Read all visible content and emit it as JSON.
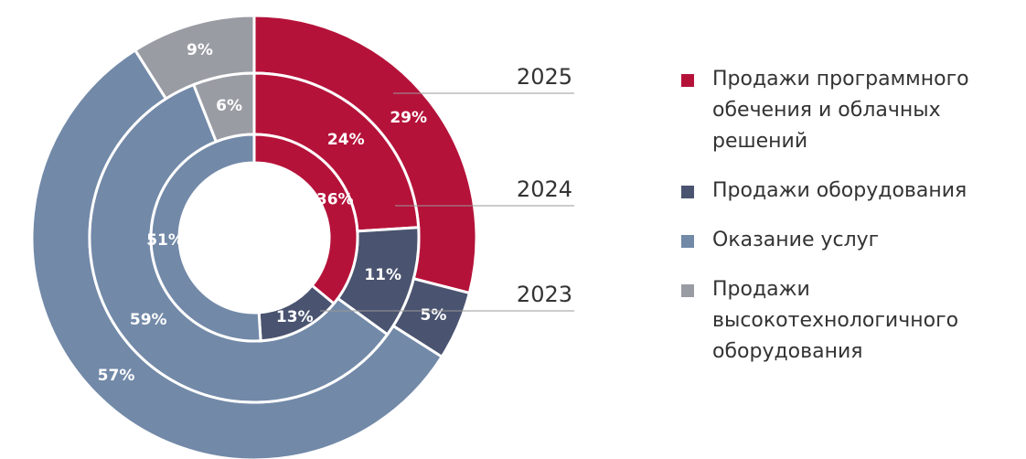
{
  "chart_data": {
    "type": "pie",
    "categories": [
      "Продажи программного обечения и облачных решений",
      "Продажи оборудования",
      "Оказание услуг",
      "Продажи высокотехнологичного оборудования"
    ],
    "colors": [
      "#b5123a",
      "#4a5470",
      "#7289a8",
      "#9a9ca4"
    ],
    "series": [
      {
        "name": "2025",
        "values": [
          29,
          5,
          57,
          9
        ],
        "value_labels": [
          "29%",
          "5%",
          "57%",
          "9%"
        ]
      },
      {
        "name": "2024",
        "values": [
          24,
          11,
          59,
          6
        ],
        "value_labels": [
          "24%",
          "11%",
          "59%",
          "6%"
        ]
      },
      {
        "name": "2023",
        "values": [
          36,
          13,
          51,
          null
        ],
        "value_labels": [
          "36%",
          "13%",
          "51%",
          null
        ]
      }
    ]
  }
}
